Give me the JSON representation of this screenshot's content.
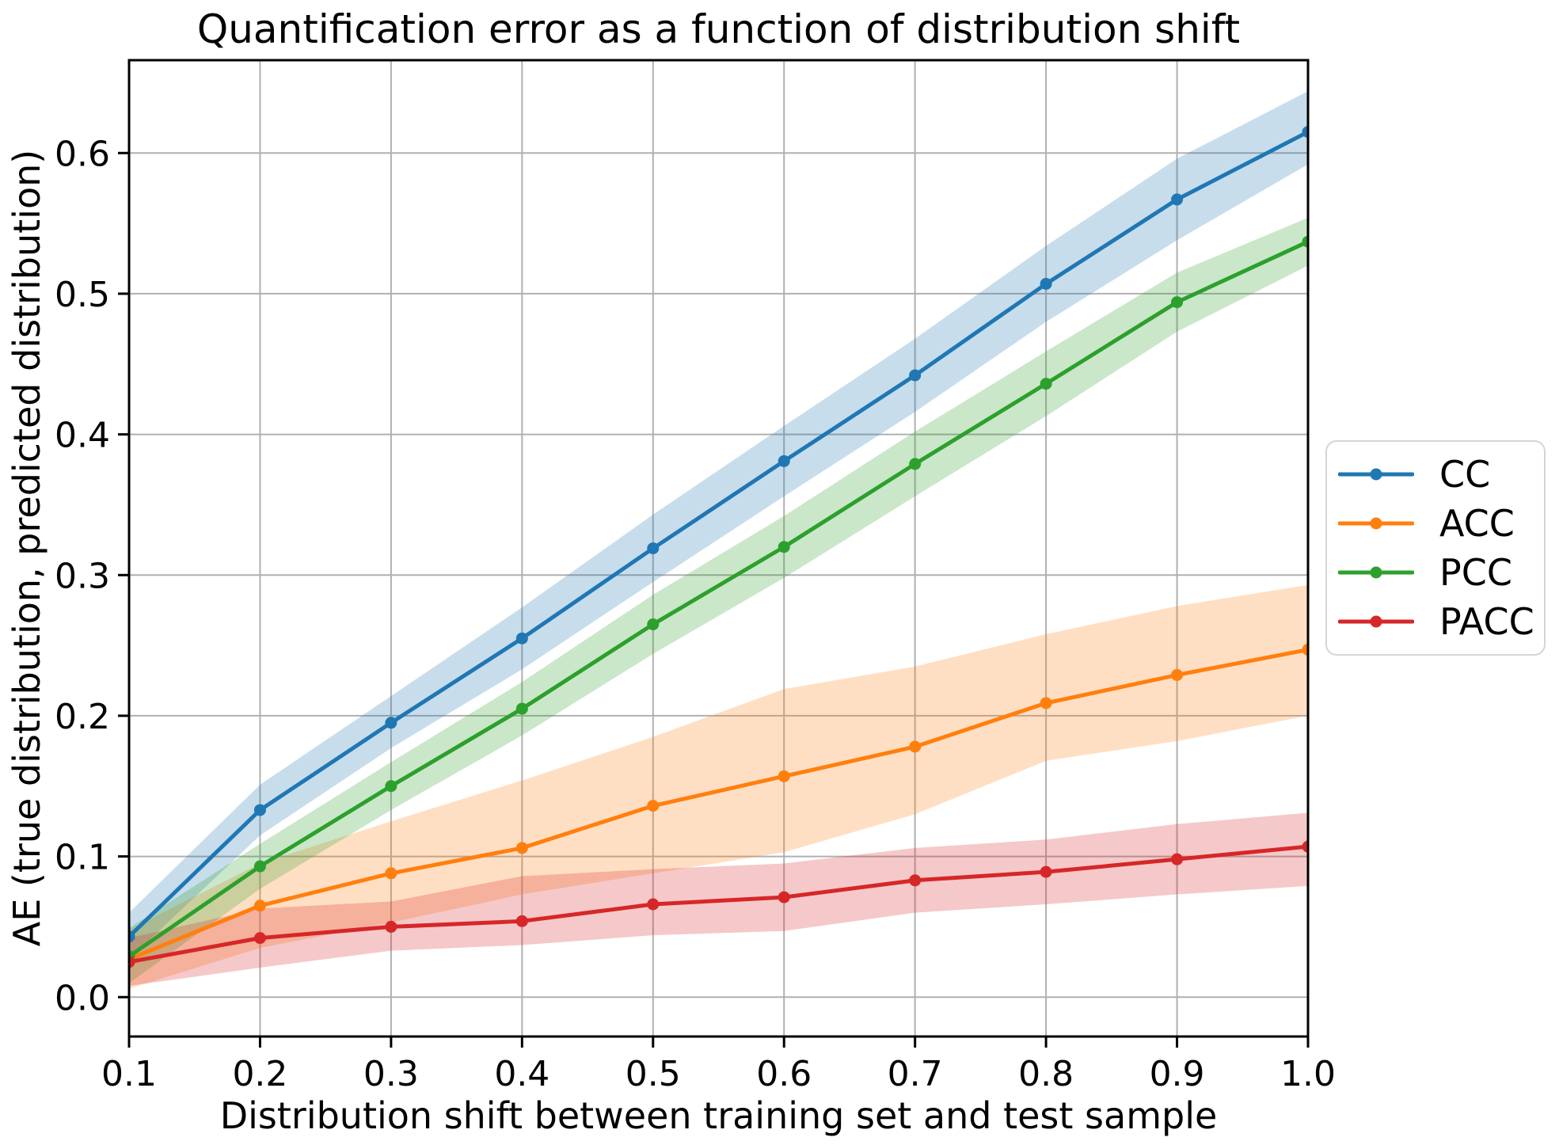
{
  "figure": {
    "background": "#ffffff",
    "grid_color": "#b0b0b0",
    "spine_color": "#000000",
    "tick_color": "#000000"
  },
  "chart_data": {
    "type": "line",
    "title": "Quantification error as a function of distribution shift",
    "xlabel": "Distribution shift between training set and test sample",
    "ylabel": "AE (true distribution, predicted distribution)",
    "grid": true,
    "legend_position": "center right outside",
    "xlim": [
      0.1,
      1.0
    ],
    "ylim": [
      -0.028,
      0.666
    ],
    "x": [
      0.1,
      0.2,
      0.3,
      0.4,
      0.5,
      0.6,
      0.7,
      0.8,
      0.9,
      1.0
    ],
    "x_tick_labels": [
      "0.1",
      "0.2",
      "0.3",
      "0.4",
      "0.5",
      "0.6",
      "0.7",
      "0.8",
      "0.9",
      "1.0"
    ],
    "y_ticks": [
      0.0,
      0.1,
      0.2,
      0.3,
      0.4,
      0.5,
      0.6
    ],
    "y_tick_labels": [
      "0.0",
      "0.1",
      "0.2",
      "0.3",
      "0.4",
      "0.5",
      "0.6"
    ],
    "band_opacity": 0.25,
    "series": [
      {
        "name": "CC",
        "color": "#1f77b4",
        "values": [
          0.043,
          0.133,
          0.195,
          0.255,
          0.319,
          0.381,
          0.442,
          0.507,
          0.567,
          0.615
        ],
        "band_upper": [
          0.06,
          0.151,
          0.214,
          0.277,
          0.343,
          0.406,
          0.468,
          0.534,
          0.596,
          0.644
        ],
        "band_lower": [
          0.027,
          0.115,
          0.177,
          0.233,
          0.295,
          0.356,
          0.416,
          0.48,
          0.538,
          0.592
        ]
      },
      {
        "name": "ACC",
        "color": "#ff7f0e",
        "values": [
          0.027,
          0.065,
          0.088,
          0.106,
          0.136,
          0.157,
          0.178,
          0.209,
          0.229,
          0.247
        ],
        "band_upper": [
          0.048,
          0.095,
          0.125,
          0.154,
          0.185,
          0.219,
          0.235,
          0.258,
          0.278,
          0.293
        ],
        "band_lower": [
          0.006,
          0.035,
          0.053,
          0.073,
          0.088,
          0.103,
          0.13,
          0.168,
          0.182,
          0.2
        ]
      },
      {
        "name": "PCC",
        "color": "#2ca02c",
        "values": [
          0.029,
          0.093,
          0.15,
          0.205,
          0.265,
          0.32,
          0.379,
          0.436,
          0.494,
          0.537
        ],
        "band_upper": [
          0.049,
          0.109,
          0.167,
          0.224,
          0.286,
          0.342,
          0.402,
          0.459,
          0.515,
          0.554
        ],
        "band_lower": [
          0.01,
          0.077,
          0.133,
          0.186,
          0.244,
          0.298,
          0.356,
          0.413,
          0.473,
          0.52
        ]
      },
      {
        "name": "PACC",
        "color": "#d62728",
        "values": [
          0.025,
          0.042,
          0.05,
          0.054,
          0.066,
          0.071,
          0.083,
          0.089,
          0.098,
          0.107
        ],
        "band_upper": [
          0.042,
          0.063,
          0.068,
          0.086,
          0.091,
          0.095,
          0.106,
          0.112,
          0.123,
          0.131
        ],
        "band_lower": [
          0.008,
          0.021,
          0.033,
          0.037,
          0.044,
          0.047,
          0.06,
          0.066,
          0.073,
          0.079
        ]
      }
    ]
  }
}
